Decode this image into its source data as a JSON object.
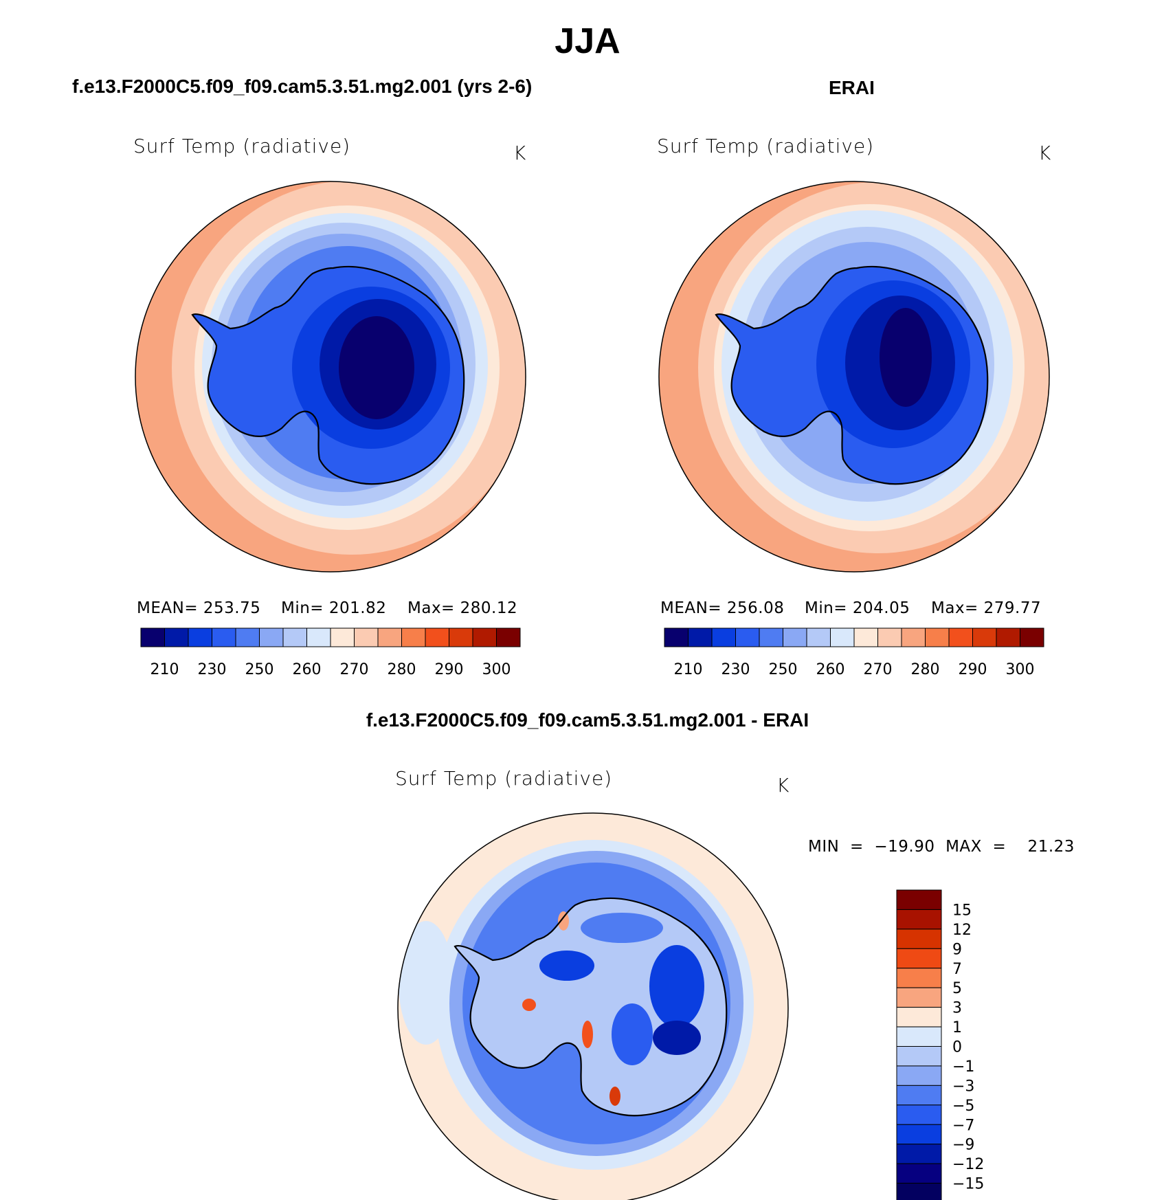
{
  "title": "JJA",
  "panels": [
    {
      "case_title": "f.e13.F2000C5.f09_f09.cam5.3.51.mg2.001 (yrs 2-6)",
      "var_label": "Surf Temp (radiative)",
      "units": "K",
      "stats": {
        "mean": "MEAN=  253.75",
        "min": "Min=  201.82",
        "max": "Max=  280.12"
      }
    },
    {
      "case_title": "ERAI",
      "var_label": "Surf Temp (radiative)",
      "units": "K",
      "stats": {
        "mean": "MEAN=  256.08",
        "min": "Min=  204.05",
        "max": "Max=  279.77"
      }
    },
    {
      "case_title": "f.e13.F2000C5.f09_f09.cam5.3.51.mg2.001 - ERAI",
      "var_label": "Surf Temp (radiative)",
      "units": "K",
      "stats": {
        "minmax": "MIN  =  −19.90  MAX  =    21.23"
      }
    }
  ],
  "colorbar_abs": {
    "colors": [
      "#08006e",
      "#001aa8",
      "#0a3ee0",
      "#2a5cf0",
      "#4f7cf2",
      "#8aa8f4",
      "#b4c9f7",
      "#d9e8fb",
      "#fde9d9",
      "#fbcbb2",
      "#f8a57f",
      "#f77f4a",
      "#f2501c",
      "#d93a0a",
      "#b01a00",
      "#7a0000"
    ],
    "ticks": [
      "210",
      "230",
      "250",
      "260",
      "270",
      "280",
      "290",
      "300"
    ]
  },
  "colorbar_diff": {
    "colors_top_to_bottom": [
      "#7a0000",
      "#a81200",
      "#d63300",
      "#ef4a14",
      "#f77f4a",
      "#f8a57f",
      "#fde9d9",
      "#d9e8fb",
      "#b4c9f7",
      "#8aa8f4",
      "#4f7cf2",
      "#2a5cf0",
      "#0a3ee0",
      "#001aa8",
      "#060080",
      "#030060"
    ],
    "ticks": [
      "15",
      "12",
      "9",
      "7",
      "5",
      "3",
      "1",
      "0",
      "−1",
      "−3",
      "−5",
      "−7",
      "−9",
      "−12",
      "−15"
    ]
  }
}
